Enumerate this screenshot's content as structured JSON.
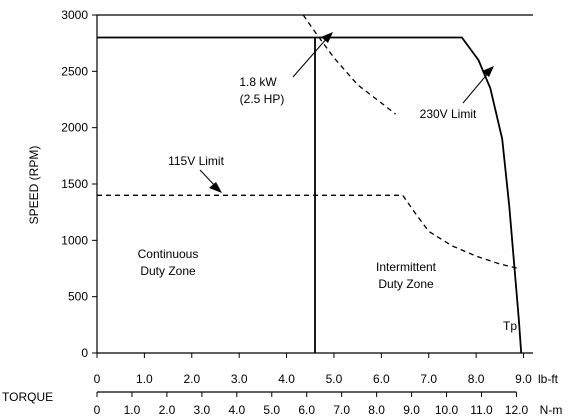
{
  "chart_data": {
    "type": "line",
    "ylabel": "SPEED (RPM)",
    "xlabel": "TORQUE",
    "ylim": [
      0,
      3000
    ],
    "xlim_lbft": [
      0,
      9.2
    ],
    "y_ticks": [
      "0",
      "500",
      "1000",
      "1500",
      "2000",
      "2500",
      "3000"
    ],
    "y_tick_values": [
      0,
      500,
      1000,
      1500,
      2000,
      2500,
      3000
    ],
    "x_unit_lbft": "lb-ft",
    "x_unit_nm": "N-m",
    "x_ticks_lbft": [
      "0",
      "1.0",
      "2.0",
      "3.0",
      "4.0",
      "5.0",
      "6.0",
      "7.0",
      "8.0",
      "9.0"
    ],
    "x_tick_values_lbft": [
      0,
      1,
      2,
      3,
      4,
      5,
      6,
      7,
      8,
      9
    ],
    "x_ticks_nm": [
      "0",
      "1.0",
      "2.0",
      "3.0",
      "4.0",
      "5.0",
      "6.0",
      "7.0",
      "8.0",
      "9.0",
      "10.0",
      "11.0",
      "12.0"
    ],
    "x_tick_values_nm": [
      0,
      1,
      2,
      3,
      4,
      5,
      6,
      7,
      8,
      9,
      10,
      11,
      12
    ],
    "grid": false,
    "series": [
      {
        "name": "230V Limit",
        "style": "solid",
        "points": [
          [
            0,
            2800
          ],
          [
            7.7,
            2800
          ],
          [
            8.05,
            2600
          ],
          [
            8.3,
            2350
          ],
          [
            8.55,
            1900
          ],
          [
            8.7,
            1300
          ],
          [
            8.82,
            700
          ],
          [
            8.9,
            300
          ],
          [
            8.95,
            0
          ]
        ]
      },
      {
        "name": "",
        "style": "dashed",
        "points": [
          [
            4.35,
            3000
          ],
          [
            4.6,
            2850
          ],
          [
            5.0,
            2620
          ],
          [
            5.5,
            2380
          ],
          [
            6.0,
            2220
          ],
          [
            6.3,
            2120
          ]
        ]
      },
      {
        "name": "115V Limit",
        "style": "dashed",
        "points": [
          [
            0,
            1400
          ],
          [
            6.45,
            1400
          ],
          [
            6.7,
            1250
          ],
          [
            7.0,
            1080
          ],
          [
            7.5,
            950
          ],
          [
            8.0,
            860
          ],
          [
            8.5,
            790
          ],
          [
            8.9,
            750
          ]
        ]
      },
      {
        "name": "1.8 kW (2.5 HP)",
        "style": "solid",
        "points": [
          [
            4.6,
            0
          ],
          [
            4.6,
            2800
          ]
        ]
      }
    ],
    "annotations": {
      "power_line1": "1.8 kW",
      "power_line2": "(2.5 HP)",
      "limit_230v": "230V Limit",
      "limit_115v": "115V Limit",
      "continuous_line1": "Continuous",
      "continuous_line2": "Duty Zone",
      "intermittent_line1": "Intermittent",
      "intermittent_line2": "Duty Zone",
      "tp": "Tp"
    }
  }
}
